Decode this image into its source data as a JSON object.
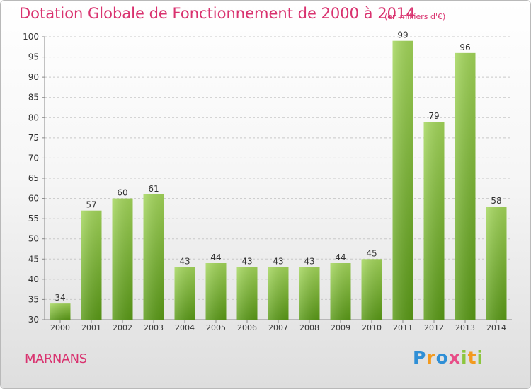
{
  "chart_data": {
    "type": "bar",
    "title": "Dotation Globale de Fonctionnement de 2000 à 2014",
    "subtitle": "(en milliers d'€)",
    "categories": [
      "2000",
      "2001",
      "2002",
      "2003",
      "2004",
      "2005",
      "2006",
      "2007",
      "2008",
      "2009",
      "2010",
      "2011",
      "2012",
      "2013",
      "2014"
    ],
    "values": [
      34,
      57,
      60,
      61,
      43,
      44,
      43,
      43,
      43,
      44,
      45,
      99,
      79,
      96,
      58
    ],
    "ylim": [
      30,
      100
    ],
    "yticks": [
      30,
      35,
      40,
      45,
      50,
      55,
      60,
      65,
      70,
      75,
      80,
      85,
      90,
      95,
      100
    ],
    "grid": true,
    "bar_color": "#7cbd2a"
  },
  "commune": "MARNANS",
  "logo": {
    "text": "Proxiti",
    "letters": [
      {
        "ch": "P",
        "color": "#2f8fd6"
      },
      {
        "ch": "r",
        "color": "#f39a1e"
      },
      {
        "ch": "o",
        "color": "#2f8fd6"
      },
      {
        "ch": "x",
        "color": "#e84d87"
      },
      {
        "ch": "i",
        "color": "#8cc63e"
      },
      {
        "ch": "t",
        "color": "#f39a1e"
      },
      {
        "ch": "i",
        "color": "#8cc63e"
      }
    ]
  }
}
